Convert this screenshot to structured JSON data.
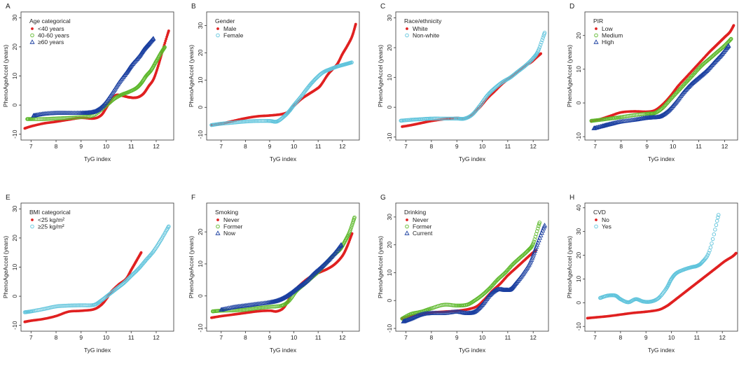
{
  "figure": {
    "xlabel_common": "TyG index",
    "ylabel_common": "PhenoAgeAccel (years)"
  },
  "colors": {
    "red": "#e02020",
    "green": "#5cb82a",
    "blue": "#1a3fa0",
    "cyan": "#60c4dc"
  },
  "chart_data": [
    {
      "id": "A",
      "type": "scatter",
      "legend_title": "Age categorical",
      "xlabel": "TyG index",
      "ylabel": "PhenoAgeAccel (years)",
      "xlim": [
        6.6,
        12.7
      ],
      "ylim": [
        -12,
        32
      ],
      "xticks": [
        7,
        8,
        9,
        10,
        11,
        12
      ],
      "yticks": [
        -10,
        0,
        10,
        20,
        30
      ],
      "series": [
        {
          "name": "<40 years",
          "color": "red",
          "marker": "dot",
          "x": [
            6.75,
            7.0,
            7.5,
            8.0,
            8.5,
            9.0,
            9.5,
            9.8,
            10.0,
            10.2,
            10.4,
            10.6,
            10.8,
            10.9,
            11.0,
            11.1,
            11.3,
            11.5,
            11.7,
            11.9,
            12.1,
            12.3,
            12.5
          ],
          "y": [
            -8,
            -7.3,
            -6.3,
            -5.7,
            -5,
            -4.4,
            -4.6,
            -3.5,
            -1,
            1.8,
            3.4,
            3.3,
            2.9,
            2.7,
            2.6,
            2.5,
            2.8,
            4,
            6.5,
            9,
            14,
            20,
            25.5
          ]
        },
        {
          "name": "40-60 years",
          "color": "green",
          "marker": "circle",
          "x": [
            6.85,
            7.0,
            7.5,
            8.0,
            8.5,
            9.0,
            9.5,
            10.0,
            10.3,
            10.6,
            10.9,
            11.2,
            11.4,
            11.6,
            11.8,
            12.0,
            12.2,
            12.35
          ],
          "y": [
            -4.8,
            -4.8,
            -4.8,
            -4.6,
            -4.4,
            -4.1,
            -3.5,
            -0.2,
            2,
            3.5,
            4.5,
            5.8,
            7.5,
            10,
            12,
            15,
            18,
            20
          ]
        },
        {
          "name": "≥60 years",
          "color": "blue",
          "marker": "triangle",
          "x": [
            7.1,
            7.5,
            8.0,
            8.5,
            9.0,
            9.3,
            9.6,
            9.9,
            10.2,
            10.5,
            10.8,
            11.0,
            11.3,
            11.5,
            11.7,
            11.9
          ],
          "y": [
            -3.6,
            -3,
            -2.7,
            -2.7,
            -2.7,
            -2.6,
            -2,
            0,
            3.5,
            7.5,
            11,
            13.5,
            16.5,
            19,
            21,
            23
          ]
        }
      ]
    },
    {
      "id": "B",
      "type": "scatter",
      "legend_title": "Gender",
      "xlabel": "TyG index",
      "ylabel": "PhenoAgeAccel (years)",
      "xlim": [
        6.4,
        12.7
      ],
      "ylim": [
        -12,
        35
      ],
      "xticks": [
        7,
        8,
        9,
        10,
        11,
        12
      ],
      "yticks": [
        -10,
        0,
        10,
        20,
        30
      ],
      "series": [
        {
          "name": "Male",
          "color": "red",
          "marker": "dot",
          "x": [
            6.6,
            7.0,
            7.5,
            8.0,
            8.5,
            9.0,
            9.5,
            9.8,
            10.0,
            10.3,
            10.6,
            10.9,
            11.1,
            11.4,
            11.6,
            11.8,
            12.0,
            12.2,
            12.4,
            12.55
          ],
          "y": [
            -6.5,
            -6,
            -5,
            -4,
            -3.3,
            -3,
            -2.5,
            -1.5,
            0.5,
            3,
            4.8,
            6.5,
            8,
            12,
            14,
            16,
            19.5,
            22.5,
            26,
            30.5
          ]
        },
        {
          "name": "Female",
          "color": "cyan",
          "marker": "circle",
          "x": [
            6.6,
            7.0,
            7.5,
            8.0,
            8.5,
            9.0,
            9.3,
            9.6,
            9.8,
            10.0,
            10.3,
            10.6,
            10.9,
            11.2,
            11.5,
            11.8,
            12.0,
            12.2,
            12.4
          ],
          "y": [
            -6.5,
            -6,
            -5.6,
            -5.2,
            -5,
            -5,
            -5.2,
            -3.3,
            -1.5,
            0.8,
            4,
            7.5,
            10.5,
            12.8,
            14,
            15,
            15.5,
            16,
            16.5
          ]
        }
      ]
    },
    {
      "id": "C",
      "type": "scatter",
      "legend_title": "Race/ethnicity",
      "xlabel": "TyG index",
      "ylabel": "PhenoAgeAccel (years)",
      "xlim": [
        6.6,
        12.6
      ],
      "ylim": [
        -11,
        32
      ],
      "xticks": [
        7,
        8,
        9,
        10,
        11,
        12
      ],
      "yticks": [
        -10,
        0,
        10,
        20,
        30
      ],
      "series": [
        {
          "name": "White",
          "color": "red",
          "marker": "dot",
          "x": [
            6.85,
            7.2,
            7.6,
            8.0,
            8.5,
            9.0,
            9.3,
            9.6,
            9.9,
            10.2,
            10.5,
            10.8,
            11.1,
            11.4,
            11.6,
            11.9,
            12.1,
            12.3
          ],
          "y": [
            -6.5,
            -6,
            -5.3,
            -4.6,
            -4,
            -3.6,
            -3.8,
            -2.4,
            0,
            3,
            5.5,
            8,
            10,
            12,
            13.5,
            15,
            16.5,
            18
          ]
        },
        {
          "name": "Non-white",
          "color": "cyan",
          "marker": "circle",
          "x": [
            6.8,
            7.2,
            7.6,
            8.0,
            8.5,
            9.0,
            9.3,
            9.6,
            9.9,
            10.2,
            10.5,
            10.8,
            11.1,
            11.4,
            11.7,
            12.0,
            12.2,
            12.45
          ],
          "y": [
            -4.5,
            -4.2,
            -4,
            -3.8,
            -3.8,
            -3.8,
            -3.8,
            -2.5,
            0.5,
            4,
            6.5,
            8.5,
            10,
            12,
            14,
            16.5,
            19,
            25
          ]
        }
      ]
    },
    {
      "id": "D",
      "type": "scatter",
      "legend_title": "PIR",
      "xlabel": "TyG index",
      "ylabel": "PhenoAgeAccel (years)",
      "xlim": [
        6.6,
        12.5
      ],
      "ylim": [
        -11,
        27
      ],
      "xticks": [
        7,
        8,
        9,
        10,
        11,
        12
      ],
      "yticks": [
        -10,
        0,
        10,
        20
      ],
      "series": [
        {
          "name": "Low",
          "color": "red",
          "marker": "dot",
          "x": [
            6.85,
            7.2,
            7.6,
            8.0,
            8.5,
            9.0,
            9.3,
            9.6,
            9.9,
            10.2,
            10.5,
            10.8,
            11.1,
            11.4,
            11.6,
            11.8,
            12.0,
            12.2,
            12.35
          ],
          "y": [
            -5.5,
            -4.8,
            -3.8,
            -2.8,
            -2.5,
            -2.6,
            -2.2,
            -0.5,
            2,
            5,
            7.5,
            10,
            12.5,
            15,
            16.5,
            18,
            19.5,
            21,
            23
          ]
        },
        {
          "name": "Medium",
          "color": "green",
          "marker": "circle",
          "x": [
            6.85,
            7.2,
            7.6,
            8.0,
            8.5,
            9.0,
            9.3,
            9.6,
            9.9,
            10.2,
            10.5,
            10.8,
            11.1,
            11.4,
            11.7,
            12.0,
            12.25
          ],
          "y": [
            -5.3,
            -5,
            -4.6,
            -4.2,
            -3.6,
            -3.2,
            -3,
            -1.5,
            1,
            3.5,
            6,
            8.5,
            11,
            13,
            15,
            17,
            19
          ]
        },
        {
          "name": "High",
          "color": "blue",
          "marker": "triangle",
          "x": [
            6.95,
            7.3,
            7.6,
            8.0,
            8.5,
            8.9,
            9.2,
            9.5,
            9.8,
            10.1,
            10.4,
            10.7,
            11.0,
            11.3,
            11.6,
            11.9,
            12.15
          ],
          "y": [
            -7.5,
            -6.8,
            -6.2,
            -5.5,
            -5,
            -4.5,
            -4.3,
            -4,
            -2.5,
            0,
            3,
            5.5,
            7.5,
            9.5,
            12,
            14.5,
            17
          ]
        }
      ]
    },
    {
      "id": "E",
      "type": "scatter",
      "legend_title": "BMI categorical",
      "xlabel": "TyG index",
      "ylabel": "PhenoAgeAccel (years)",
      "xlim": [
        6.6,
        12.7
      ],
      "ylim": [
        -12,
        32
      ],
      "xticks": [
        7,
        8,
        9,
        10,
        11,
        12
      ],
      "yticks": [
        -10,
        0,
        10,
        20,
        30
      ],
      "series": [
        {
          "name": "<25 kg/m²",
          "color": "red",
          "marker": "dot",
          "x": [
            6.75,
            7.0,
            7.5,
            8.0,
            8.5,
            9.0,
            9.5,
            9.8,
            10.0,
            10.2,
            10.5,
            10.8,
            11.0,
            11.2,
            11.4
          ],
          "y": [
            -8.8,
            -8.4,
            -7.8,
            -6.8,
            -5.3,
            -5,
            -4.5,
            -3,
            -1,
            1.5,
            4,
            6,
            9,
            12,
            15
          ]
        },
        {
          "name": "≥25 kg/m²",
          "color": "cyan",
          "marker": "circle",
          "x": [
            6.75,
            7.0,
            7.5,
            8.0,
            8.5,
            9.0,
            9.5,
            9.8,
            10.1,
            10.4,
            10.7,
            11.0,
            11.3,
            11.6,
            11.9,
            12.2,
            12.5
          ],
          "y": [
            -5.5,
            -5.2,
            -4.4,
            -3.5,
            -3.2,
            -3.1,
            -3,
            -1.5,
            0.5,
            2.5,
            4.5,
            7,
            9.5,
            12.5,
            15.5,
            19.5,
            24
          ]
        }
      ]
    },
    {
      "id": "F",
      "type": "scatter",
      "legend_title": "Smoking",
      "xlabel": "TyG index",
      "ylabel": "PhenoAgeAccel (years)",
      "xlim": [
        6.4,
        12.7
      ],
      "ylim": [
        -11,
        29
      ],
      "xticks": [
        7,
        8,
        9,
        10,
        11,
        12
      ],
      "yticks": [
        -10,
        0,
        10,
        20
      ],
      "series": [
        {
          "name": "Never",
          "color": "red",
          "marker": "dot",
          "x": [
            6.6,
            7.0,
            7.5,
            8.0,
            8.5,
            9.0,
            9.3,
            9.6,
            9.9,
            10.2,
            10.5,
            10.8,
            11.1,
            11.4,
            11.7,
            12.0,
            12.2,
            12.4
          ],
          "y": [
            -6.8,
            -6.3,
            -5.8,
            -5.3,
            -4.8,
            -4.6,
            -4.8,
            -3.5,
            0.5,
            3,
            5,
            6.5,
            7.5,
            8.5,
            10,
            12.5,
            15.5,
            19.5
          ]
        },
        {
          "name": "Former",
          "color": "green",
          "marker": "circle",
          "x": [
            6.65,
            7.0,
            7.5,
            8.0,
            8.5,
            9.0,
            9.5,
            9.8,
            10.1,
            10.4,
            10.7,
            11.0,
            11.3,
            11.6,
            11.9,
            12.1,
            12.3,
            12.5
          ],
          "y": [
            -4.8,
            -4.6,
            -4.5,
            -4.3,
            -3.8,
            -3.4,
            -3,
            -1.5,
            1.5,
            3.5,
            5.5,
            7.5,
            10,
            12.5,
            14.5,
            17,
            20,
            24.5
          ]
        },
        {
          "name": "Now",
          "color": "blue",
          "marker": "triangle",
          "x": [
            7.0,
            7.5,
            8.0,
            8.5,
            9.0,
            9.3,
            9.6,
            9.9,
            10.2,
            10.5,
            10.8,
            11.1,
            11.4,
            11.7,
            11.95
          ],
          "y": [
            -4.3,
            -3.5,
            -3,
            -2.5,
            -2,
            -1.5,
            -0.5,
            1,
            2.8,
            4.5,
            6.8,
            8.8,
            11,
            13.5,
            16
          ]
        }
      ]
    },
    {
      "id": "G",
      "type": "scatter",
      "legend_title": "Drinking",
      "xlabel": "TyG index",
      "ylabel": "PhenoAgeAccel (years)",
      "xlim": [
        6.6,
        12.6
      ],
      "ylim": [
        -11,
        35
      ],
      "xticks": [
        7,
        8,
        9,
        10,
        11,
        12
      ],
      "yticks": [
        -10,
        0,
        10,
        20,
        30
      ],
      "series": [
        {
          "name": "Never",
          "color": "red",
          "marker": "dot",
          "x": [
            6.85,
            7.2,
            7.6,
            8.0,
            8.5,
            8.9,
            9.2,
            9.5,
            9.8,
            10.1,
            10.4,
            10.7,
            11.0,
            11.3,
            11.6,
            11.9,
            12.1
          ],
          "y": [
            -6.5,
            -5.5,
            -4.8,
            -4.3,
            -4,
            -3.8,
            -3.5,
            -3,
            -2,
            0.5,
            3.5,
            6,
            9,
            11.5,
            14,
            16.5,
            18
          ]
        },
        {
          "name": "Former",
          "color": "green",
          "marker": "circle",
          "x": [
            6.85,
            7.2,
            7.6,
            8.0,
            8.5,
            9.0,
            9.4,
            9.7,
            10.0,
            10.3,
            10.6,
            10.9,
            11.2,
            11.5,
            11.8,
            12.0,
            12.25
          ],
          "y": [
            -6.5,
            -4.8,
            -4,
            -2.8,
            -1.5,
            -1.8,
            -1.5,
            0,
            2,
            4.5,
            7.5,
            10,
            13,
            15.5,
            18,
            20.5,
            28
          ]
        },
        {
          "name": "Current",
          "color": "blue",
          "marker": "triangle",
          "x": [
            6.9,
            7.2,
            7.6,
            8.0,
            8.5,
            9.0,
            9.4,
            9.7,
            10.0,
            10.3,
            10.6,
            10.9,
            11.1,
            11.3,
            11.6,
            11.9,
            12.15,
            12.45
          ],
          "y": [
            -7.5,
            -6.5,
            -5,
            -4.5,
            -4.5,
            -4,
            -4.5,
            -4,
            -1.5,
            2,
            4,
            3.8,
            4,
            6,
            9.5,
            14,
            20,
            27
          ]
        }
      ]
    },
    {
      "id": "H",
      "type": "scatter",
      "legend_title": "CVD",
      "xlabel": "TyG index",
      "ylabel": "PhenoAgeAccel (years)",
      "xlim": [
        6.6,
        12.6
      ],
      "ylim": [
        -12,
        42
      ],
      "xticks": [
        7,
        8,
        9,
        10,
        11,
        12
      ],
      "yticks": [
        -10,
        0,
        10,
        20,
        30,
        40
      ],
      "series": [
        {
          "name": "No",
          "color": "red",
          "marker": "dot",
          "x": [
            6.7,
            7.0,
            7.5,
            8.0,
            8.5,
            9.0,
            9.5,
            9.8,
            10.0,
            10.3,
            10.6,
            10.9,
            11.2,
            11.5,
            11.8,
            12.1,
            12.4,
            12.55
          ],
          "y": [
            -6.5,
            -6.2,
            -5.7,
            -5,
            -4.3,
            -3.8,
            -3,
            -1.5,
            0,
            2.5,
            5,
            7.5,
            10,
            12.5,
            15,
            17.5,
            19.5,
            21
          ]
        },
        {
          "name": "Yes",
          "color": "cyan",
          "marker": "circle",
          "x": [
            7.2,
            7.5,
            7.8,
            8.0,
            8.3,
            8.6,
            8.9,
            9.2,
            9.5,
            9.8,
            10.0,
            10.2,
            10.5,
            10.8,
            11.0,
            11.2,
            11.5,
            11.85
          ],
          "y": [
            2,
            3,
            3,
            1.5,
            0.2,
            1.5,
            0.5,
            0.5,
            2,
            6,
            10,
            12.5,
            14,
            15,
            15.5,
            17,
            22,
            37
          ]
        }
      ]
    }
  ]
}
